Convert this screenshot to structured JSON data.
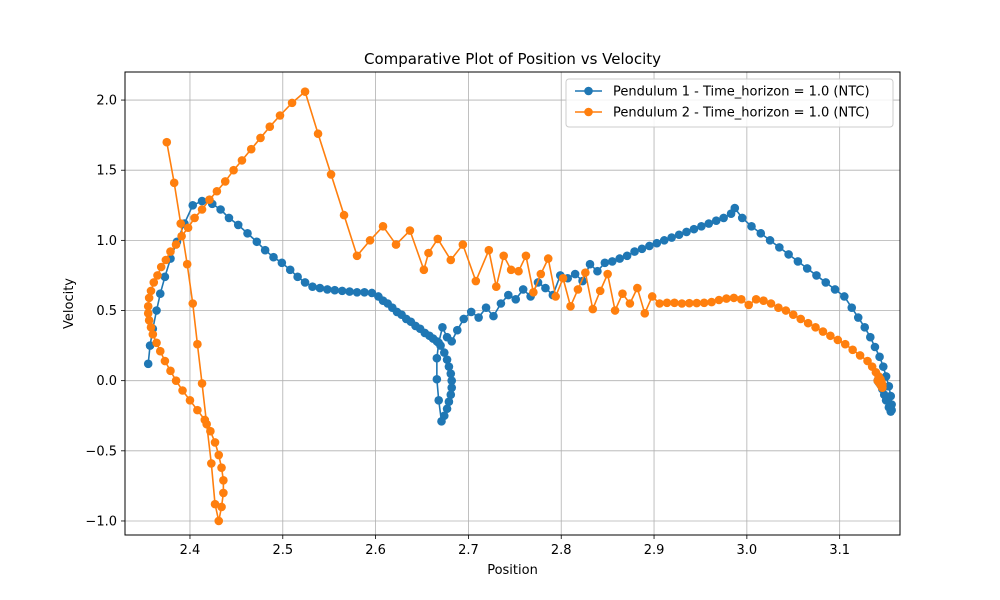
{
  "chart_data": {
    "type": "line",
    "title": "Comparative Plot of Position vs Velocity",
    "xlabel": "Position",
    "ylabel": "Velocity",
    "xlim": [
      2.33,
      3.165
    ],
    "ylim": [
      -1.1,
      2.2
    ],
    "xticks": [
      2.4,
      2.5,
      2.6,
      2.7,
      2.8,
      2.9,
      3.0,
      3.1
    ],
    "xtick_labels": [
      "2.4",
      "2.5",
      "2.6",
      "2.7",
      "2.8",
      "2.9",
      "3.0",
      "3.1"
    ],
    "yticks": [
      -1.0,
      -0.5,
      0.0,
      0.5,
      1.0,
      1.5,
      2.0
    ],
    "ytick_labels": [
      "−1.0",
      "−0.5",
      "0.0",
      "0.5",
      "1.0",
      "1.5",
      "2.0"
    ],
    "grid": true,
    "legend_position": "top-right",
    "series": [
      {
        "name": "Pendulum 1 - Time_horizon = 1.0 (NTC)",
        "color": "#1f77b4",
        "x": [
          2.355,
          2.357,
          2.36,
          2.364,
          2.368,
          2.373,
          2.379,
          2.386,
          2.394,
          2.403,
          2.413,
          2.424,
          2.433,
          2.442,
          2.452,
          2.462,
          2.472,
          2.481,
          2.49,
          2.499,
          2.508,
          2.516,
          2.524,
          2.532,
          2.54,
          2.548,
          2.556,
          2.564,
          2.572,
          2.58,
          2.588,
          2.596,
          2.603,
          2.608,
          2.613,
          2.618,
          2.623,
          2.628,
          2.633,
          2.638,
          2.643,
          2.648,
          2.653,
          2.658,
          2.662,
          2.666,
          2.67,
          2.674,
          2.677,
          2.679,
          2.681,
          2.682,
          2.682,
          2.681,
          2.679,
          2.677,
          2.674,
          2.671,
          2.668,
          2.666,
          2.666,
          2.668,
          2.672,
          2.677,
          2.682,
          2.688,
          2.695,
          2.703,
          2.711,
          2.719,
          2.727,
          2.735,
          2.743,
          2.751,
          2.759,
          2.767,
          2.775,
          2.783,
          2.791,
          2.799,
          2.807,
          2.815,
          2.823,
          2.831,
          2.839,
          2.847,
          2.855,
          2.863,
          2.871,
          2.879,
          2.887,
          2.895,
          2.903,
          2.911,
          2.919,
          2.927,
          2.935,
          2.943,
          2.951,
          2.959,
          2.967,
          2.975,
          2.983,
          2.987,
          2.995,
          3.005,
          3.015,
          3.025,
          3.035,
          3.045,
          3.055,
          3.065,
          3.075,
          3.085,
          3.095,
          3.105,
          3.113,
          3.12,
          3.127,
          3.133,
          3.138,
          3.143,
          3.147,
          3.15,
          3.153,
          3.155,
          3.156,
          3.156,
          3.155,
          3.153,
          3.15,
          3.148,
          3.146,
          3.144,
          3.142,
          3.141,
          3.141
        ],
        "y": [
          0.12,
          0.25,
          0.37,
          0.5,
          0.62,
          0.74,
          0.87,
          0.99,
          1.12,
          1.25,
          1.28,
          1.26,
          1.22,
          1.16,
          1.11,
          1.05,
          0.99,
          0.93,
          0.88,
          0.84,
          0.79,
          0.74,
          0.7,
          0.67,
          0.66,
          0.65,
          0.645,
          0.64,
          0.635,
          0.63,
          0.63,
          0.625,
          0.6,
          0.57,
          0.55,
          0.52,
          0.49,
          0.47,
          0.44,
          0.42,
          0.39,
          0.37,
          0.34,
          0.32,
          0.3,
          0.28,
          0.25,
          0.2,
          0.15,
          0.1,
          0.05,
          0.0,
          -0.05,
          -0.1,
          -0.15,
          -0.2,
          -0.25,
          -0.29,
          -0.14,
          0.01,
          0.16,
          0.27,
          0.38,
          0.31,
          0.28,
          0.36,
          0.44,
          0.49,
          0.45,
          0.52,
          0.46,
          0.55,
          0.61,
          0.58,
          0.65,
          0.6,
          0.7,
          0.66,
          0.61,
          0.75,
          0.73,
          0.76,
          0.71,
          0.83,
          0.78,
          0.84,
          0.85,
          0.87,
          0.89,
          0.92,
          0.94,
          0.96,
          0.98,
          1.0,
          1.02,
          1.04,
          1.06,
          1.08,
          1.1,
          1.12,
          1.14,
          1.16,
          1.19,
          1.23,
          1.16,
          1.1,
          1.05,
          1.0,
          0.95,
          0.9,
          0.85,
          0.8,
          0.75,
          0.7,
          0.65,
          0.6,
          0.52,
          0.45,
          0.38,
          0.31,
          0.24,
          0.17,
          0.1,
          0.03,
          -0.04,
          -0.11,
          -0.17,
          -0.21,
          -0.22,
          -0.19,
          -0.14,
          -0.1,
          -0.06,
          -0.03,
          -0.01,
          0.0,
          0.0
        ]
      },
      {
        "name": "Pendulum 2 - Time_horizon = 1.0 (NTC)",
        "color": "#ff7f0e",
        "x": [
          2.375,
          2.383,
          2.39,
          2.397,
          2.403,
          2.408,
          2.413,
          2.418,
          2.423,
          2.427,
          2.431,
          2.434,
          2.436,
          2.436,
          2.434,
          2.431,
          2.427,
          2.422,
          2.416,
          2.408,
          2.4,
          2.392,
          2.385,
          2.379,
          2.373,
          2.368,
          2.364,
          2.36,
          2.358,
          2.356,
          2.355,
          2.355,
          2.356,
          2.358,
          2.361,
          2.365,
          2.369,
          2.374,
          2.379,
          2.385,
          2.391,
          2.398,
          2.405,
          2.413,
          2.421,
          2.429,
          2.438,
          2.447,
          2.456,
          2.466,
          2.476,
          2.486,
          2.497,
          2.51,
          2.524,
          2.538,
          2.552,
          2.566,
          2.58,
          2.594,
          2.608,
          2.622,
          2.637,
          2.652,
          2.657,
          2.667,
          2.681,
          2.694,
          2.708,
          2.722,
          2.73,
          2.738,
          2.746,
          2.754,
          2.762,
          2.77,
          2.778,
          2.786,
          2.794,
          2.802,
          2.81,
          2.818,
          2.826,
          2.834,
          2.842,
          2.85,
          2.858,
          2.866,
          2.874,
          2.882,
          2.89,
          2.898,
          2.906,
          2.914,
          2.922,
          2.93,
          2.938,
          2.946,
          2.954,
          2.962,
          2.97,
          2.978,
          2.986,
          2.994,
          3.002,
          3.01,
          3.018,
          3.026,
          3.034,
          3.042,
          3.05,
          3.058,
          3.066,
          3.074,
          3.082,
          3.09,
          3.098,
          3.106,
          3.114,
          3.122,
          3.13,
          3.135,
          3.139,
          3.142,
          3.144,
          3.145,
          3.146,
          3.146,
          3.145,
          3.143,
          3.141
        ],
        "y": [
          1.7,
          1.41,
          1.12,
          0.83,
          0.55,
          0.26,
          -0.02,
          -0.31,
          -0.59,
          -0.88,
          -1.0,
          -0.9,
          -0.8,
          -0.71,
          -0.62,
          -0.53,
          -0.44,
          -0.36,
          -0.28,
          -0.21,
          -0.14,
          -0.07,
          0.0,
          0.07,
          0.14,
          0.21,
          0.27,
          0.33,
          0.38,
          0.43,
          0.48,
          0.53,
          0.59,
          0.64,
          0.7,
          0.75,
          0.81,
          0.86,
          0.92,
          0.97,
          1.03,
          1.09,
          1.16,
          1.22,
          1.29,
          1.35,
          1.42,
          1.5,
          1.57,
          1.65,
          1.73,
          1.81,
          1.89,
          1.98,
          2.06,
          1.76,
          1.47,
          1.18,
          0.89,
          1.0,
          1.1,
          0.97,
          1.07,
          0.79,
          0.91,
          1.01,
          0.86,
          0.97,
          0.71,
          0.93,
          0.67,
          0.89,
          0.79,
          0.78,
          0.89,
          0.63,
          0.76,
          0.87,
          0.6,
          0.73,
          0.53,
          0.65,
          0.77,
          0.51,
          0.64,
          0.76,
          0.5,
          0.62,
          0.55,
          0.66,
          0.48,
          0.6,
          0.55,
          0.555,
          0.555,
          0.55,
          0.552,
          0.553,
          0.555,
          0.56,
          0.575,
          0.585,
          0.59,
          0.58,
          0.54,
          0.58,
          0.57,
          0.55,
          0.52,
          0.5,
          0.47,
          0.44,
          0.41,
          0.38,
          0.35,
          0.32,
          0.29,
          0.26,
          0.22,
          0.18,
          0.14,
          0.1,
          0.06,
          0.03,
          0.01,
          -0.01,
          -0.03,
          -0.05,
          -0.04,
          -0.02,
          0.0
        ]
      }
    ]
  }
}
